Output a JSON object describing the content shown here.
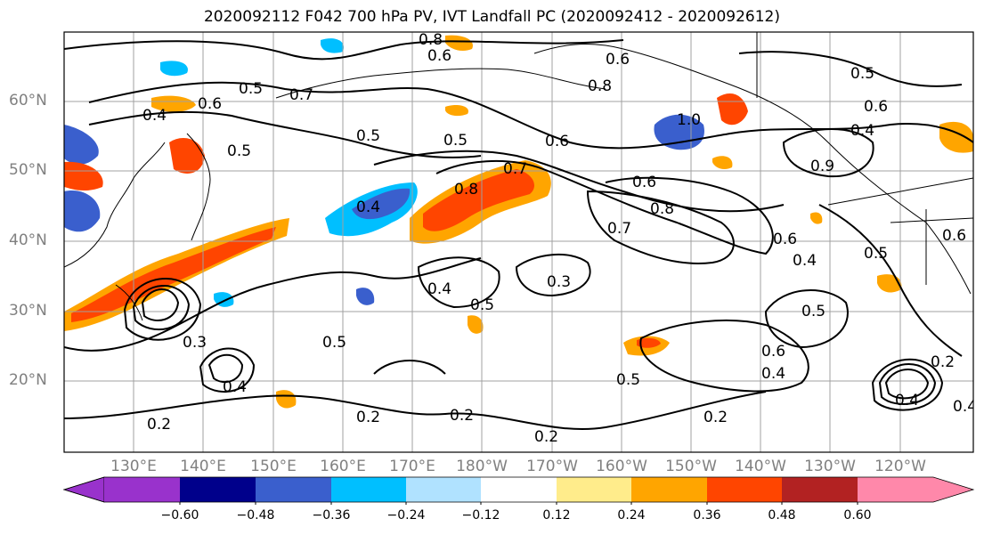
{
  "title": "2020092112 F042 700 hPa PV, IVT Landfall PC (2020092412 - 2020092612)",
  "lat_labels": [
    "60°N",
    "50°N",
    "40°N",
    "30°N",
    "20°N"
  ],
  "lon_labels": [
    "130°E",
    "140°E",
    "150°E",
    "160°E",
    "170°E",
    "180°W",
    "170°W",
    "160°W",
    "150°W",
    "140°W",
    "130°W",
    "120°W"
  ],
  "colorbar": {
    "ticks": [
      "−0.60",
      "−0.48",
      "−0.36",
      "−0.24",
      "−0.12",
      "0.12",
      "0.24",
      "0.36",
      "0.48",
      "0.60"
    ],
    "colors": [
      "#9932cc",
      "#00008b",
      "#3a5fcd",
      "#00bfff",
      "#b0e2ff",
      "#ffffff",
      "#ffec8b",
      "#ffa500",
      "#ff4500",
      "#b22222",
      "#ff88aa"
    ]
  },
  "contour_labels": [
    "0.8",
    "0.6",
    "0.5",
    "0.7",
    "0.6",
    "0.4",
    "0.5",
    "0.5",
    "0.5",
    "0.6",
    "0.8",
    "0.7",
    "0.6",
    "0.8",
    "0.7",
    "0.3",
    "0.4",
    "0.5",
    "0.5",
    "0.3",
    "0.4",
    "0.2",
    "0.2",
    "0.2",
    "0.2",
    "0.2",
    "0.5",
    "0.4",
    "0.6",
    "0.5",
    "0.6",
    "0.4",
    "0.5",
    "0.4",
    "0.6",
    "0.2",
    "1.0",
    "0.5",
    "0.6",
    "0.4",
    "0.4",
    "0.8",
    "0.6",
    "0.4",
    "0.9"
  ]
}
